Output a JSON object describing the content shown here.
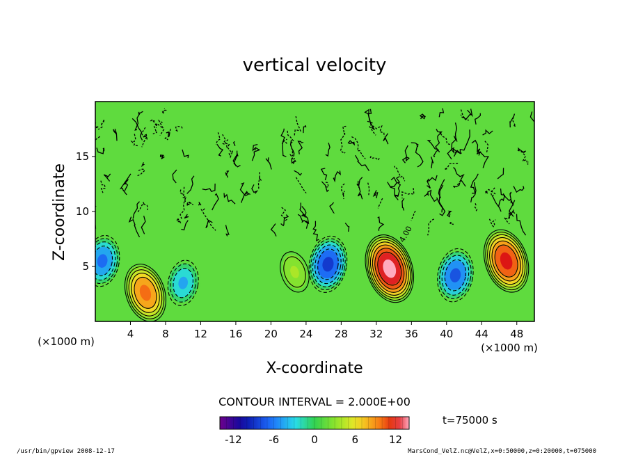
{
  "chart_data": {
    "type": "heatmap",
    "title": "vertical velocity",
    "xlabel": "X-coordinate",
    "ylabel": "Z-coordinate",
    "x_unit_label": "(×1000 m)",
    "z_unit_label": "(×1000 m)",
    "x_ticks": [
      4,
      8,
      12,
      16,
      20,
      24,
      28,
      32,
      36,
      40,
      44,
      48
    ],
    "z_ticks": [
      5,
      10,
      15
    ],
    "xlim": [
      0,
      50
    ],
    "zlim": [
      0,
      20
    ],
    "contour_interval_text": "CONTOUR INTERVAL = 2.000E+00",
    "contour_interval": 2.0,
    "contour_label_sample": "4.00",
    "time_text": "t=75000 s",
    "colorbar": {
      "ticks": [
        -12,
        -6,
        0,
        6,
        12
      ],
      "range": [
        -14,
        14
      ]
    },
    "features": [
      {
        "kind": "updraft",
        "x": 5.7,
        "z": 2.6,
        "peak": 10
      },
      {
        "kind": "updraft",
        "x": 33.5,
        "z": 4.8,
        "peak": 14
      },
      {
        "kind": "updraft",
        "x": 46.8,
        "z": 5.5,
        "peak": 12
      },
      {
        "kind": "updraft",
        "x": 22.7,
        "z": 4.5,
        "peak": 4
      },
      {
        "kind": "downdraft",
        "x": 26.5,
        "z": 5.2,
        "peak": -9
      },
      {
        "kind": "downdraft",
        "x": 41.0,
        "z": 4.2,
        "peak": -8
      },
      {
        "kind": "downdraft",
        "x": 0.8,
        "z": 5.5,
        "peak": -7
      },
      {
        "kind": "downdraft",
        "x": 10.0,
        "z": 3.5,
        "peak": -5
      }
    ]
  },
  "footer": {
    "left_text": "/usr/bin/gpview  2008-12-17",
    "right_text": "MarsCond_VelZ.nc@VelZ,x=0:50000,z=0:20000,t=075000"
  },
  "colors": {
    "background": "#ffffff",
    "field_base": "#33d24a",
    "updraft_core": "#ff9aa8",
    "downdraft_core": "#1e90ff"
  }
}
